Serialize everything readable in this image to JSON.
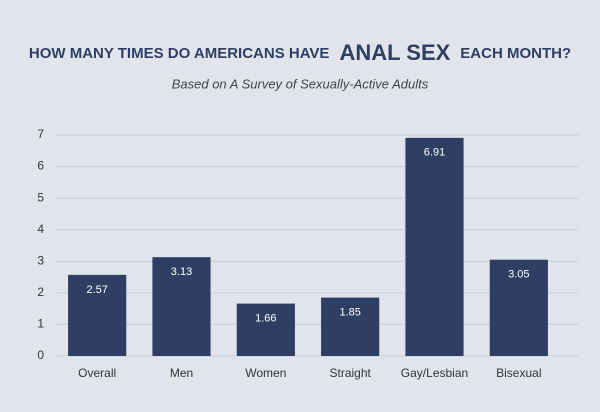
{
  "chart_data": {
    "type": "bar",
    "title": [
      "HOW MANY TIMES DO AMERICANS HAVE",
      "ANAL SEX",
      "EACH MONTH?"
    ],
    "subtitle": "Based on A Survey of Sexually-Active Adults",
    "categories": [
      "Overall",
      "Men",
      "Women",
      "Straight",
      "Gay/Lesbian",
      "Bisexual"
    ],
    "values": [
      2.57,
      3.13,
      1.66,
      1.85,
      6.91,
      3.05
    ],
    "color": "#2e3f63",
    "ylim": [
      0,
      7
    ],
    "yticks": [
      0,
      1,
      2,
      3,
      4,
      5,
      6,
      7
    ],
    "grid": true
  }
}
